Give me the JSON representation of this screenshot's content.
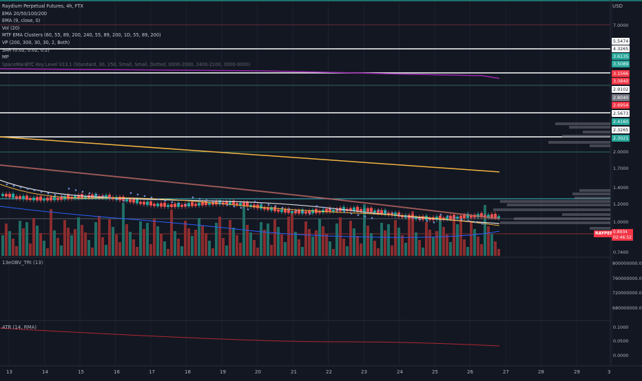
{
  "header": {
    "symbol_line": "Raydium Perpetual Futures, 4h, FTX",
    "currency": "USD"
  },
  "legend": [
    "EMA 20/50/100/200",
    "EMA (9, close, 0)",
    "Vol (20)",
    "MTF EMA Clusters (60, 55, 89, 200, 240, 55, 89, 200, 1D, 55, 89, 200)",
    "VP (200, 300, 30, 30, 2, Both)",
    "SAR (0.02, 0.02, 0.2)",
    "MP",
    "SpaceManBTC Key Level V13.1 (Standard, 30, 250, Small, Small, Dotted, 0000-2000, 2400-2100, 0000-0000)"
  ],
  "price_axis": {
    "ticks": [
      "7.0000",
      "2.0000",
      "1.7000",
      "1.4000",
      "1.2000",
      "1.0000",
      "0.7400"
    ],
    "level_labels": [
      {
        "text": "5.5474",
        "bg": "#ffffff",
        "fg": "#131722"
      },
      {
        "text": "4.3265",
        "bg": "#ffffff",
        "fg": "#131722"
      },
      {
        "text": "3.6135",
        "bg": "#26a69a",
        "fg": "#ffffff"
      },
      {
        "text": "3.5089",
        "bg": "#26a69a",
        "fg": "#ffffff"
      },
      {
        "text": "3.1566",
        "bg": "#f23645",
        "fg": "#ffffff"
      },
      {
        "text": "3.0840",
        "bg": "#f23645",
        "fg": "#ffffff"
      },
      {
        "text": "2.9102",
        "bg": "#ffffff",
        "fg": "#131722"
      },
      {
        "text": "2.8040",
        "bg": "#787b86",
        "fg": "#ffffff"
      },
      {
        "text": "2.6954",
        "bg": "#f23645",
        "fg": "#ffffff"
      },
      {
        "text": "2.5673",
        "bg": "#ffffff",
        "fg": "#131722"
      },
      {
        "text": "2.4160",
        "bg": "#26a69a",
        "fg": "#ffffff"
      },
      {
        "text": "2.3265",
        "bg": "#ffffff",
        "fg": "#131722"
      },
      {
        "text": "2.3021",
        "bg": "#26a69a",
        "fg": "#ffffff"
      }
    ]
  },
  "last_price": {
    "symbol": "RAYPERP",
    "value": "0.8934",
    "countdown": "02:46:52"
  },
  "obv": {
    "legend": "13eOBV_TRI (13)",
    "ticks": [
      "800000000.0000",
      "760000000.0000",
      "720000000.0000",
      "680000000.0000"
    ]
  },
  "atr": {
    "legend": "ATR (14, RMA)",
    "ticks": [
      "0.1000",
      "0.0500",
      "0.0000"
    ]
  },
  "time_axis": [
    "13",
    "14",
    "15",
    "16",
    "17",
    "18",
    "19",
    "20",
    "21",
    "22",
    "23",
    "24",
    "25",
    "26",
    "27",
    "28",
    "29",
    "3"
  ],
  "colors": {
    "background": "#131722",
    "bull": "#26a69a",
    "bear": "#ef5350",
    "vol_bull": "#1f6e66",
    "vol_bear": "#8b2c2e",
    "ema_orange": "#f5b642",
    "ema_white": "#e0e0e0",
    "ema_red": "#b5655f",
    "ema_blue": "#2962ff",
    "ema_purple": "#9c27b0",
    "sar": "#6f8fd8",
    "atr": "#b22833",
    "cyan": "#3fc1c9",
    "volume_profile": "#6d6f78"
  }
}
